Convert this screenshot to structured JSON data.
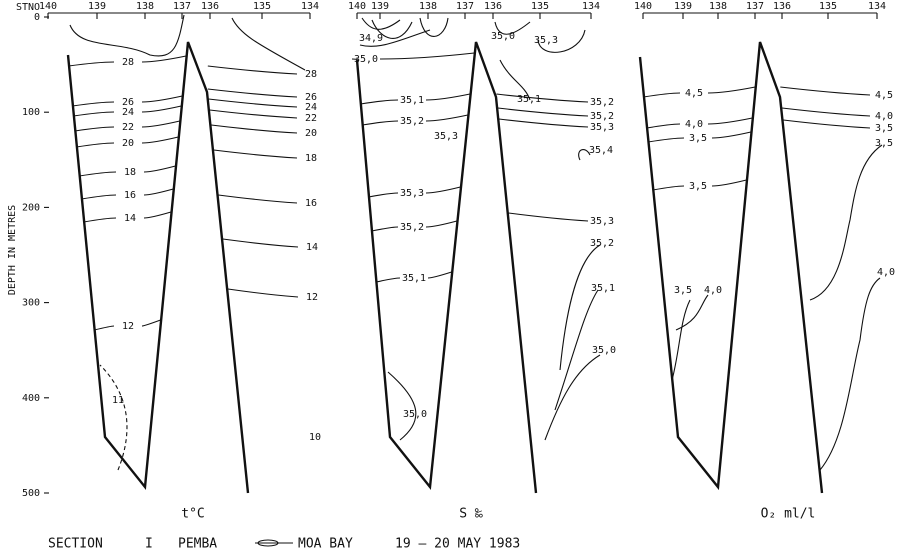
{
  "y_axis": {
    "label": "DEPTH IN METRES",
    "ticks": [
      "0",
      "100",
      "200",
      "300",
      "400",
      "500"
    ]
  },
  "stations_label": "STNO",
  "panels": [
    {
      "stations": [
        "140",
        "139",
        "138",
        "137",
        "136",
        "135",
        "134"
      ],
      "parameter": "t°C",
      "contour_labels": [
        "28",
        "26",
        "24",
        "22",
        "20",
        "18",
        "16",
        "14",
        "12",
        "11",
        "28",
        "26",
        "24",
        "22",
        "20",
        "18",
        "16",
        "14",
        "12",
        "10"
      ]
    },
    {
      "stations": [
        "140",
        "139",
        "138",
        "137",
        "136",
        "135",
        "134"
      ],
      "parameter": "S ‰",
      "contour_labels": [
        "34,9",
        "35,0",
        "35,0",
        "35,3",
        "35,1",
        "35,2",
        "35,3",
        "35,1",
        "35,2",
        "35,2",
        "35,3",
        "35,4",
        "35,3",
        "35,2",
        "35,1",
        "35,3",
        "35,2",
        "35,1",
        "35,0",
        "35,0"
      ]
    },
    {
      "stations": [
        "140",
        "139",
        "138",
        "137",
        "136",
        "135",
        "134"
      ],
      "parameter": "O₂ ml/l",
      "contour_labels": [
        "4,5",
        "4,0",
        "3,5",
        "3,5",
        "3,5",
        "4,0",
        "4,5",
        "4,0",
        "3,5",
        "3,5",
        "4,0"
      ]
    }
  ],
  "caption": {
    "section": "SECTION",
    "number": "I",
    "from": "PEMBA",
    "to": "MOA BAY",
    "date": "19 – 20 MAY 1983"
  }
}
